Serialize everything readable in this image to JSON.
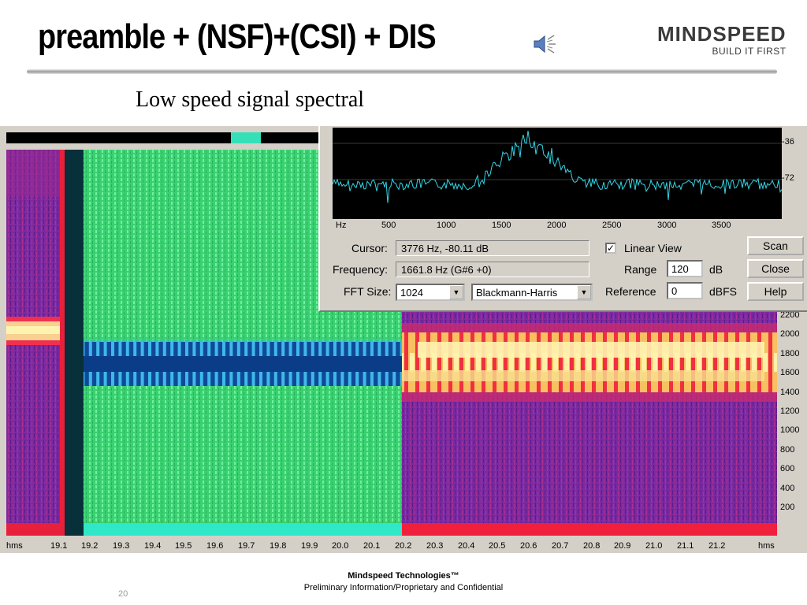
{
  "slide": {
    "title": "preamble + (NSF)+(CSI) + DIS",
    "subtitle": "Low speed signal spectral",
    "logo_word": "MINDSPEED",
    "logo_tagline": "BUILD IT FIRST",
    "footer_company": "Mindspeed Technologies™",
    "footer_confidential": "Preliminary Information/Proprietary and Confidential",
    "page_number": "20"
  },
  "spectrum_window": {
    "y_ticks": [
      "-36",
      "-72"
    ],
    "x_ticks": [
      "Hz",
      "500",
      "1000",
      "1500",
      "2000",
      "2500",
      "3000",
      "3500"
    ],
    "trace_color": "#33d6e6",
    "cursor_label": "Cursor:",
    "cursor_value": "3776 Hz, -80.11 dB",
    "frequency_label": "Frequency:",
    "frequency_value": "1661.8 Hz (G#6 +0)",
    "fft_size_label": "FFT Size:",
    "fft_size_value": "1024",
    "window_value": "Blackmann-Harris",
    "linear_view_label": "Linear View",
    "linear_view_checked": true,
    "range_label": "Range",
    "range_value": "120",
    "range_unit": "dB",
    "reference_label": "Reference",
    "reference_value": "0",
    "reference_unit": "dBFS",
    "buttons": {
      "scan": "Scan",
      "close": "Close",
      "help": "Help"
    }
  },
  "spectrogram": {
    "freq_ticks": [
      "2200",
      "2000",
      "1800",
      "1600",
      "1400",
      "1200",
      "1000",
      "800",
      "600",
      "400",
      "200"
    ],
    "time_ticks": [
      "hms",
      "19.1",
      "19.2",
      "19.3",
      "19.4",
      "19.5",
      "19.6",
      "19.7",
      "19.8",
      "19.9",
      "20.0",
      "20.1",
      "20.2",
      "20.3",
      "20.4",
      "20.5",
      "20.6",
      "20.7",
      "20.8",
      "20.9",
      "21.0",
      "21.1",
      "21.2",
      "hms"
    ],
    "colors": {
      "noise_green": "#3cd878",
      "tone_blue": "#1a58b0",
      "purple_bg": "#7a2a9e",
      "red_band": "#e8203c",
      "yellow_band": "#f8e890"
    }
  }
}
